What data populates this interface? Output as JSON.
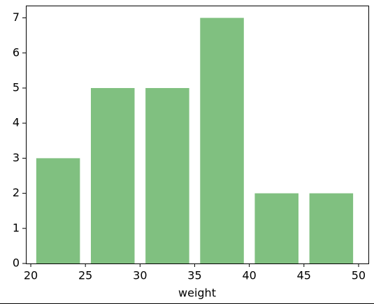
{
  "chart_data": {
    "type": "histogram",
    "x_label": "weight",
    "bins": [
      20,
      25,
      30,
      35,
      40,
      45,
      50
    ],
    "values": [
      3,
      5,
      5,
      7,
      2,
      2
    ],
    "color": "#80c080",
    "rwidth": 0.8,
    "xlim": [
      19.55,
      50.9
    ],
    "xticks": [
      20,
      25,
      30,
      35,
      40,
      45,
      50
    ],
    "ylim": [
      0,
      7.35
    ],
    "yticks": [
      0,
      1,
      2,
      3,
      4,
      5,
      6,
      7
    ]
  }
}
